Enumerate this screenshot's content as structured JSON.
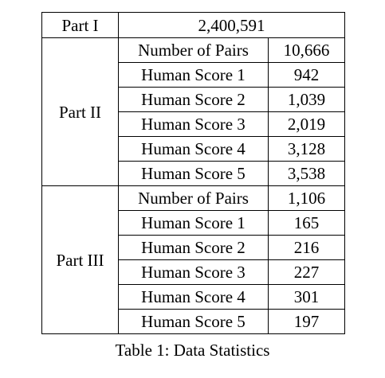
{
  "table": {
    "part1": {
      "label": "Part I",
      "value": "2,400,591"
    },
    "part2": {
      "label": "Part II",
      "rows": [
        {
          "metric": "Number of Pairs",
          "value": "10,666"
        },
        {
          "metric": "Human Score 1",
          "value": "942"
        },
        {
          "metric": "Human Score 2",
          "value": "1,039"
        },
        {
          "metric": "Human Score 3",
          "value": "2,019"
        },
        {
          "metric": "Human Score 4",
          "value": "3,128"
        },
        {
          "metric": "Human Score 5",
          "value": "3,538"
        }
      ]
    },
    "part3": {
      "label": "Part III",
      "rows": [
        {
          "metric": "Number of Pairs",
          "value": "1,106"
        },
        {
          "metric": "Human Score 1",
          "value": "165"
        },
        {
          "metric": "Human Score 2",
          "value": "216"
        },
        {
          "metric": "Human Score 3",
          "value": "227"
        },
        {
          "metric": "Human Score 4",
          "value": "301"
        },
        {
          "metric": "Human Score 5",
          "value": "197"
        }
      ]
    }
  },
  "caption": "Table 1: Data Statistics"
}
